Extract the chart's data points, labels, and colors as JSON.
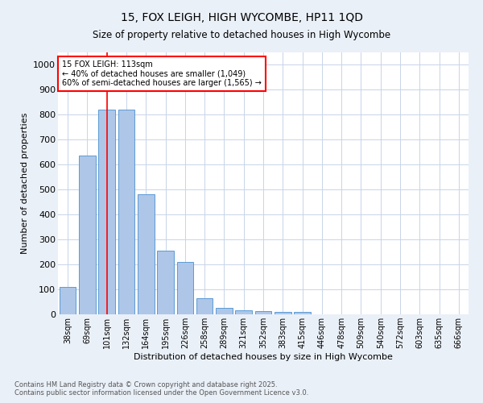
{
  "title1": "15, FOX LEIGH, HIGH WYCOMBE, HP11 1QD",
  "title2": "Size of property relative to detached houses in High Wycombe",
  "xlabel": "Distribution of detached houses by size in High Wycombe",
  "ylabel": "Number of detached properties",
  "categories": [
    "38sqm",
    "69sqm",
    "101sqm",
    "132sqm",
    "164sqm",
    "195sqm",
    "226sqm",
    "258sqm",
    "289sqm",
    "321sqm",
    "352sqm",
    "383sqm",
    "415sqm",
    "446sqm",
    "478sqm",
    "509sqm",
    "540sqm",
    "572sqm",
    "603sqm",
    "635sqm",
    "666sqm"
  ],
  "values": [
    110,
    635,
    820,
    820,
    480,
    255,
    210,
    65,
    27,
    17,
    12,
    10,
    9,
    0,
    0,
    0,
    0,
    0,
    0,
    0,
    0
  ],
  "bar_color": "#aec6e8",
  "bar_edge_color": "#5b9bd5",
  "annotation_text": "15 FOX LEIGH: 113sqm\n← 40% of detached houses are smaller (1,049)\n60% of semi-detached houses are larger (1,565) →",
  "ylim": [
    0,
    1050
  ],
  "yticks": [
    0,
    100,
    200,
    300,
    400,
    500,
    600,
    700,
    800,
    900,
    1000
  ],
  "red_line_index": 2,
  "footnote": "Contains HM Land Registry data © Crown copyright and database right 2025.\nContains public sector information licensed under the Open Government Licence v3.0.",
  "bg_color": "#eaf0f8",
  "plot_bg_color": "#ffffff",
  "grid_color": "#c8d4e8"
}
